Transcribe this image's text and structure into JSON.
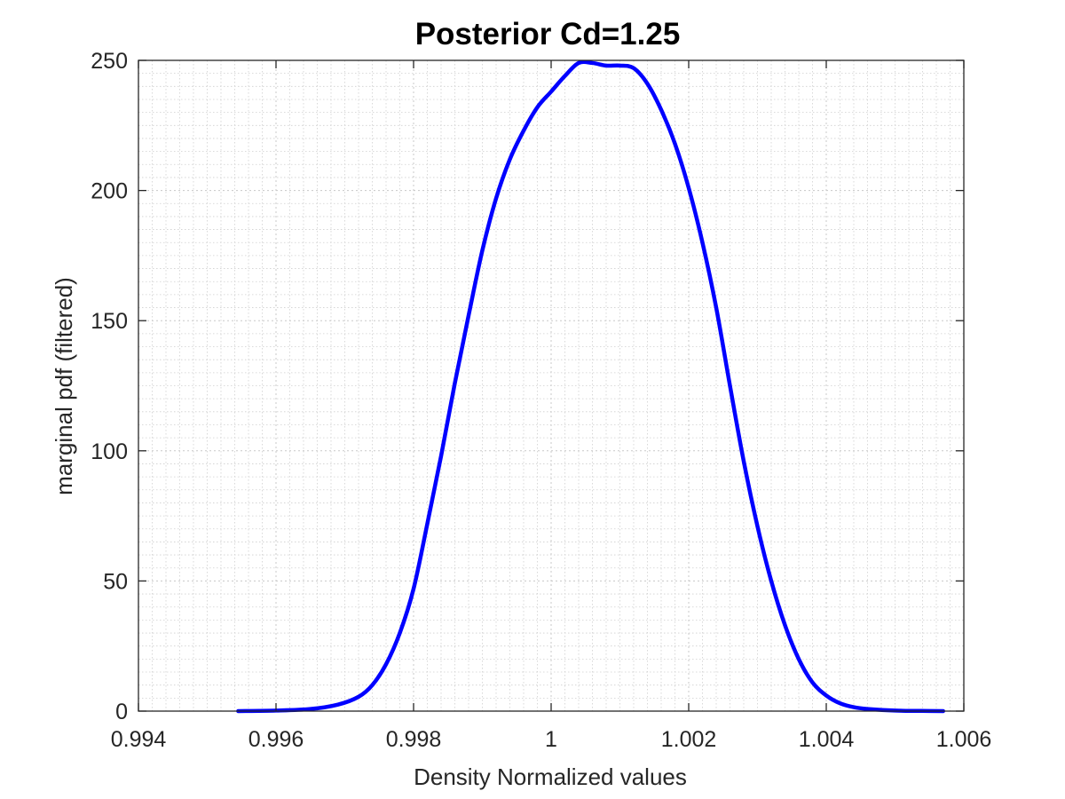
{
  "chart_data": {
    "type": "line",
    "title": "Posterior Cd=1.25",
    "xlabel": "Density Normalized values",
    "ylabel": "marginal pdf (filtered)",
    "xlim": [
      0.994,
      1.006
    ],
    "ylim": [
      0,
      250
    ],
    "xticks": [
      0.994,
      0.996,
      0.998,
      1.0,
      1.002,
      1.004,
      1.006
    ],
    "xtick_labels": [
      "0.994",
      "0.996",
      "0.998",
      "1",
      "1.002",
      "1.004",
      "1.006"
    ],
    "yticks": [
      0,
      50,
      100,
      150,
      200,
      250
    ],
    "ytick_labels": [
      "0",
      "50",
      "100",
      "150",
      "200",
      "250"
    ],
    "grid": true,
    "minor_grid": true,
    "legend": "none",
    "series": [
      {
        "color": "#0000ff",
        "x": [
          0.99545,
          0.996,
          0.9965,
          0.9969,
          0.9972,
          0.9974,
          0.9976,
          0.9978,
          0.998,
          0.9982,
          0.9984,
          0.9986,
          0.9988,
          0.999,
          0.9992,
          0.9994,
          0.9996,
          0.9998,
          1.0,
          1.0002,
          1.0004,
          1.0006,
          1.0008,
          1.001,
          1.0012,
          1.0014,
          1.0016,
          1.0018,
          1.002,
          1.0022,
          1.0024,
          1.0026,
          1.0028,
          1.003,
          1.0032,
          1.0034,
          1.0036,
          1.0038,
          1.004,
          1.0042,
          1.0044,
          1.0046,
          1.005,
          1.0055,
          1.0057
        ],
        "y": [
          0,
          0.2,
          0.8,
          2.5,
          5.5,
          10,
          18,
          30,
          47,
          72,
          98,
          126,
          152,
          177,
          197,
          212,
          223,
          232,
          238,
          244,
          249,
          249,
          248,
          248,
          247,
          241,
          231,
          218,
          201,
          180,
          155,
          125,
          96,
          71,
          50,
          33,
          20,
          11,
          6,
          3,
          1.5,
          0.8,
          0.2,
          0.05,
          0
        ]
      }
    ]
  }
}
